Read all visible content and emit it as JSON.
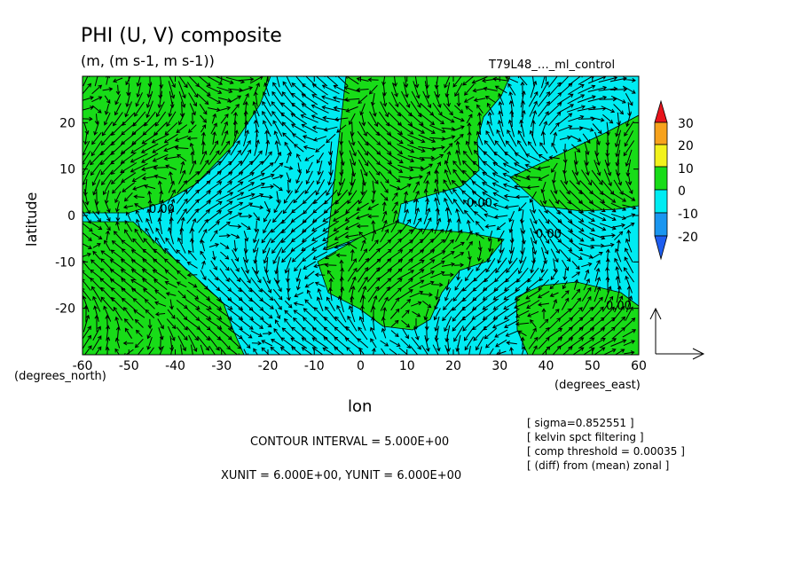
{
  "chart_data": {
    "type": "heatmap",
    "title": "PHI (U, V) composite",
    "subtitle": "(m, (m s-1, m s-1))",
    "run_label": "T79L48_…_ml_control",
    "xlabel": "lon",
    "ylabel": "latitude",
    "x_unit_label": "(degrees_east)",
    "y_unit_label": "(degrees_north)",
    "xlim": [
      -60,
      60
    ],
    "ylim": [
      -30,
      30
    ],
    "x_ticks": [
      -60,
      -50,
      -40,
      -30,
      -20,
      -10,
      0,
      10,
      20,
      30,
      40,
      50,
      60
    ],
    "x_tick_labels": [
      "-60",
      "-50",
      "-40",
      "-30",
      "-20",
      "-10",
      "0",
      "10",
      "20",
      "30",
      "40",
      "50",
      "60"
    ],
    "y_ticks": [
      -20,
      -10,
      0,
      10,
      20
    ],
    "y_tick_labels": [
      "-20",
      "-10",
      "0",
      "10",
      "20"
    ],
    "contour_labels": [
      "0.00",
      "0.00",
      "0.00",
      "0.00"
    ],
    "colorbar": {
      "levels": [
        -20,
        -10,
        0,
        10,
        20,
        30
      ],
      "labels": [
        "30",
        "20",
        "10",
        "0",
        "-10",
        "-20"
      ],
      "colors": [
        "#e8141c",
        "#f7a21c",
        "#f2f21c",
        "#18dc18",
        "#00ecf2",
        "#1a96f0"
      ]
    },
    "field_colors": {
      "positive": "#18dc18",
      "negative": "#00ecf2"
    },
    "contour_interval": "CONTOUR INTERVAL = 5.000E+00",
    "vector_units": "XUNIT = 6.000E+00, YUNIT = 6.000E+00",
    "notes": [
      "[ sigma=0.852551 ]",
      "[ kelvin spct filtering ]",
      "[ comp threshold = 0.00035 ]",
      "[ (diff) from (mean) zonal ]"
    ]
  }
}
